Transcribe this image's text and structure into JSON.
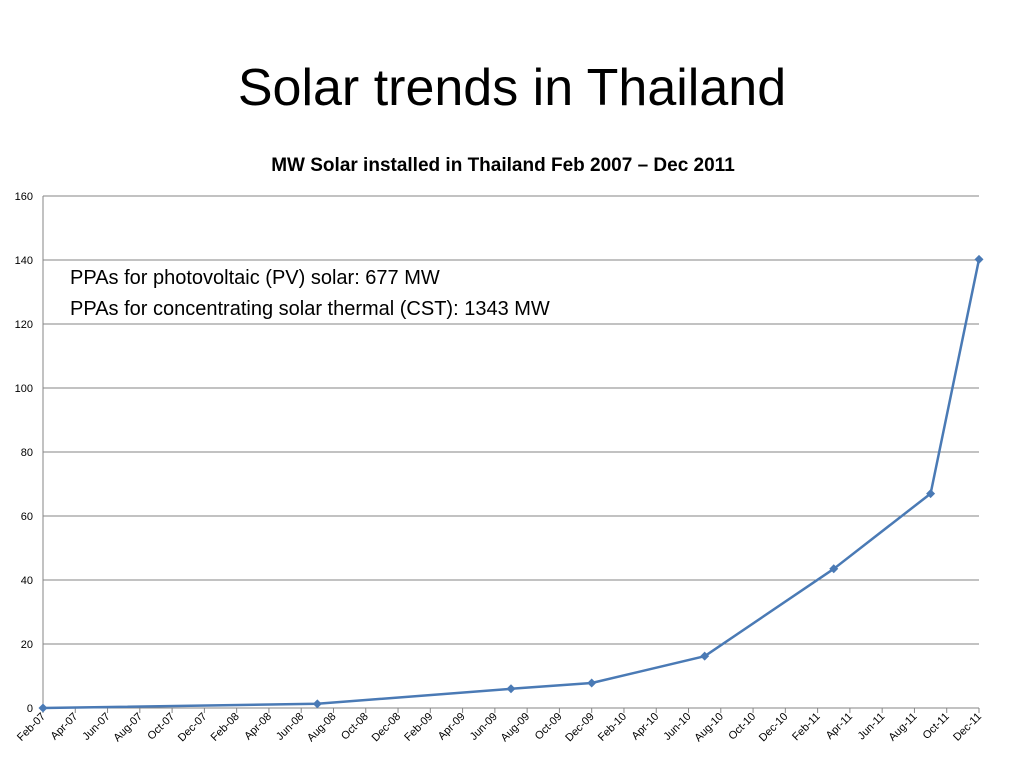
{
  "slide": {
    "title": "Solar trends in Thailand"
  },
  "chart_data": {
    "type": "line",
    "title": "MW Solar installed in Thailand Feb 2007 – Dec 2011",
    "xlabel": "",
    "ylabel": "",
    "ylim": [
      0,
      160
    ],
    "y_ticks": [
      0,
      20,
      40,
      60,
      80,
      100,
      120,
      140,
      160
    ],
    "x_tick_labels": [
      "Feb-07",
      "Apr-07",
      "Jun-07",
      "Aug-07",
      "Oct-07",
      "Dec-07",
      "Feb-08",
      "Apr-08",
      "Jun-08",
      "Aug-08",
      "Oct-08",
      "Dec-08",
      "Feb-09",
      "Apr-09",
      "Jun-09",
      "Aug-09",
      "Oct-09",
      "Dec-09",
      "Feb-10",
      "Apr-10",
      "Jun-10",
      "Aug-10",
      "Oct-10",
      "Dec-10",
      "Feb-11",
      "Apr-11",
      "Jun-11",
      "Aug-11",
      "Oct-11",
      "Dec-11"
    ],
    "grid": true,
    "legend": "none",
    "series": [
      {
        "color": "#4a7ab5",
        "marker": "diamond",
        "points": [
          {
            "x": "Feb-07",
            "y": 0
          },
          {
            "x": "Jul-08",
            "y": 1.3
          },
          {
            "x": "Jul-09",
            "y": 6
          },
          {
            "x": "Dec-09",
            "y": 7.8
          },
          {
            "x": "Jul-10",
            "y": 16.2
          },
          {
            "x": "Mar-11",
            "y": 43.5
          },
          {
            "x": "Sep-11",
            "y": 67
          },
          {
            "x": "Dec-11",
            "y": 140.2
          }
        ]
      }
    ],
    "annotations": [
      "PPAs for photovoltaic (PV) solar: 677 MW",
      "PPAs for concentrating solar thermal (CST): 1343 MW"
    ]
  }
}
